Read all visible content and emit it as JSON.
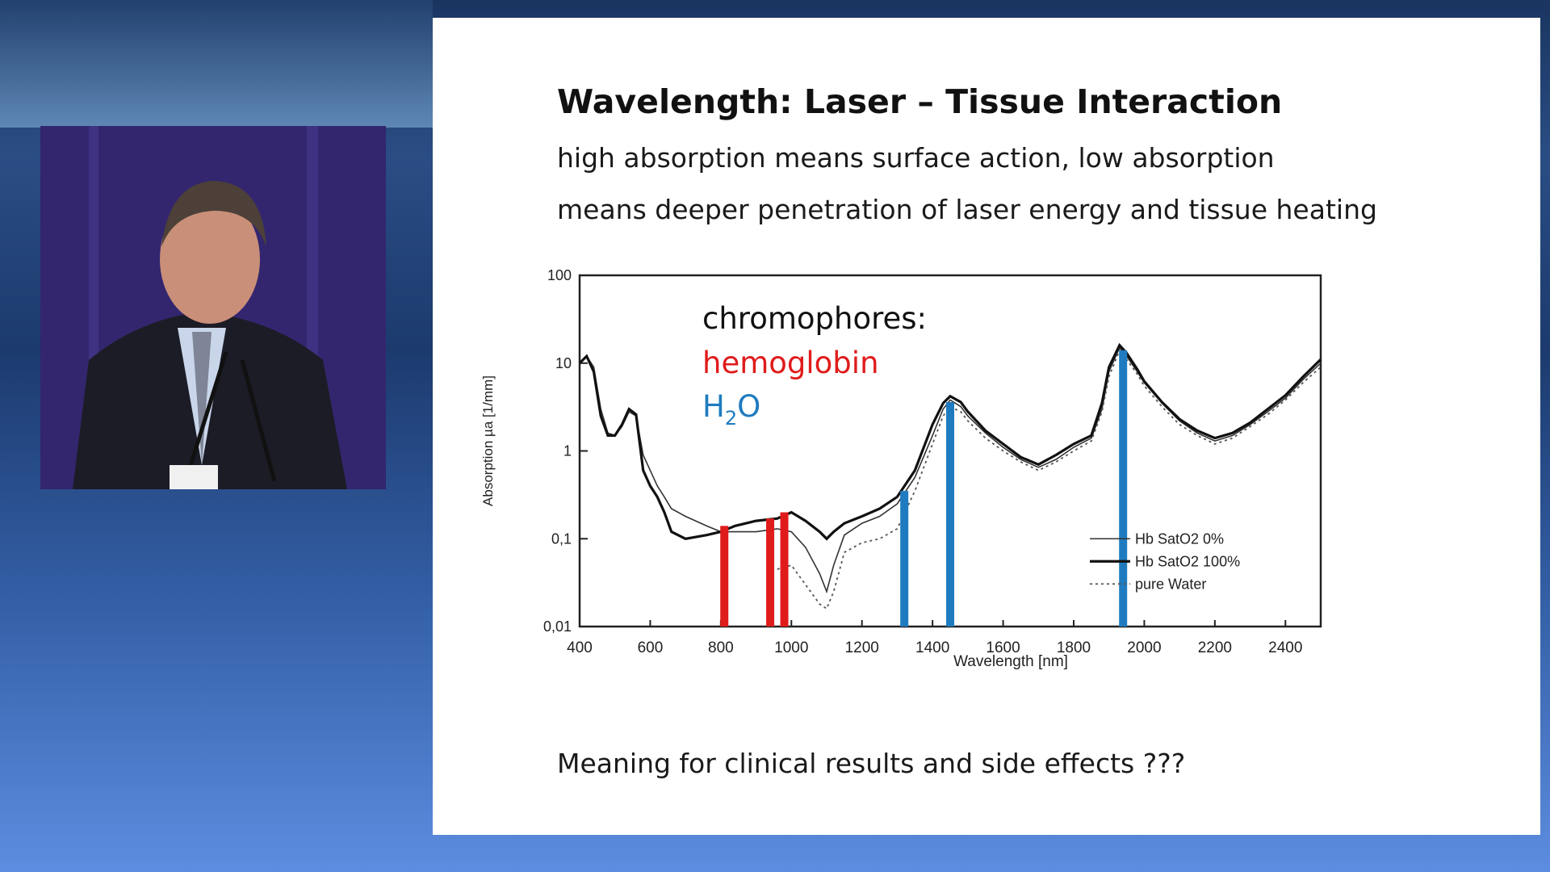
{
  "slide": {
    "title": "Wavelength: Laser – Tissue Interaction",
    "subtitle_line1": "high absorption means surface action, low absorption",
    "subtitle_line2": "means deeper penetration of laser energy and tissue heating",
    "note": "Meaning for clinical results and side effects ???"
  },
  "presenter": {
    "description_icon": "person-speaking-at-podium"
  },
  "chart_data": {
    "type": "line",
    "xlabel": "Wavelength [nm]",
    "ylabel": "Absorption µa [1/mm]",
    "xlim": [
      400,
      2500
    ],
    "ylim": [
      0.01,
      100
    ],
    "y_scale": "log",
    "x_ticks": [
      "400",
      "600",
      "800",
      "1000",
      "1200",
      "1400",
      "1600",
      "1800",
      "2000",
      "2200",
      "2400"
    ],
    "y_ticks": [
      "0,01",
      "0,1",
      "1",
      "10",
      "100"
    ],
    "annotation": {
      "heading": "chromophores:",
      "hemoglobin": "hemoglobin",
      "water_main": "H",
      "water_sub": "2",
      "water_tail": "O",
      "hemoglobin_color": "#e01b1b",
      "water_color": "#1f7bbf"
    },
    "legend_position": "bottom-right",
    "series": [
      {
        "name": "Hb SatO2 0%",
        "style": "thin",
        "x": [
          400,
          420,
          440,
          460,
          480,
          500,
          520,
          540,
          560,
          580,
          600,
          620,
          640,
          660,
          700,
          760,
          800,
          840,
          900,
          960,
          1000,
          1040,
          1080,
          1100,
          1120,
          1150,
          1200,
          1250,
          1300,
          1350,
          1400,
          1430,
          1450,
          1480,
          1500,
          1550,
          1600,
          1650,
          1700,
          1750,
          1800,
          1850,
          1880,
          1900,
          1930,
          1950,
          1980,
          2000,
          2050,
          2100,
          2150,
          2200,
          2250,
          2300,
          2350,
          2400,
          2450,
          2500
        ],
        "y": [
          10,
          12,
          9,
          3,
          1.6,
          1.5,
          1.9,
          2.8,
          2.5,
          0.9,
          0.6,
          0.4,
          0.3,
          0.22,
          0.18,
          0.14,
          0.12,
          0.12,
          0.12,
          0.13,
          0.12,
          0.08,
          0.04,
          0.025,
          0.05,
          0.11,
          0.15,
          0.18,
          0.25,
          0.5,
          1.5,
          3,
          3.8,
          3.2,
          2.5,
          1.6,
          1.1,
          0.8,
          0.65,
          0.8,
          1.1,
          1.4,
          3,
          8,
          15,
          12,
          8,
          6,
          3.5,
          2.2,
          1.6,
          1.3,
          1.5,
          2,
          2.8,
          4,
          6.5,
          10
        ]
      },
      {
        "name": "Hb SatO2 100%",
        "style": "thick",
        "x": [
          400,
          420,
          440,
          460,
          480,
          500,
          520,
          540,
          560,
          580,
          600,
          620,
          640,
          660,
          700,
          760,
          800,
          840,
          900,
          960,
          1000,
          1040,
          1080,
          1100,
          1120,
          1150,
          1200,
          1250,
          1300,
          1350,
          1400,
          1430,
          1450,
          1480,
          1500,
          1550,
          1600,
          1650,
          1700,
          1750,
          1800,
          1850,
          1880,
          1900,
          1930,
          1950,
          1980,
          2000,
          2050,
          2100,
          2150,
          2200,
          2250,
          2300,
          2350,
          2400,
          2450,
          2500
        ],
        "y": [
          10,
          12,
          8,
          2.5,
          1.5,
          1.5,
          2,
          3,
          2.6,
          0.6,
          0.4,
          0.3,
          0.2,
          0.12,
          0.1,
          0.11,
          0.12,
          0.14,
          0.16,
          0.17,
          0.2,
          0.16,
          0.12,
          0.1,
          0.12,
          0.15,
          0.18,
          0.22,
          0.3,
          0.6,
          2,
          3.5,
          4.2,
          3.6,
          2.8,
          1.7,
          1.2,
          0.85,
          0.7,
          0.9,
          1.2,
          1.5,
          3.5,
          9,
          16,
          13,
          8.5,
          6.2,
          3.6,
          2.3,
          1.7,
          1.4,
          1.6,
          2.1,
          3,
          4.3,
          7,
          11
        ]
      },
      {
        "name": "pure Water",
        "style": "dotted",
        "x": [
          960,
          1000,
          1040,
          1080,
          1100,
          1120,
          1150,
          1200,
          1250,
          1300,
          1350,
          1400,
          1430,
          1450,
          1480,
          1500,
          1550,
          1600,
          1650,
          1700,
          1750,
          1800,
          1850,
          1880,
          1900,
          1930,
          1950,
          1980,
          2000,
          2050,
          2100,
          2150,
          2200,
          2250,
          2300,
          2350,
          2400,
          2450,
          2500
        ],
        "y": [
          0.045,
          0.05,
          0.03,
          0.018,
          0.016,
          0.025,
          0.07,
          0.09,
          0.1,
          0.13,
          0.35,
          1.2,
          2.5,
          3.2,
          2.8,
          2.2,
          1.4,
          1,
          0.75,
          0.6,
          0.75,
          1,
          1.3,
          2.8,
          7,
          14,
          11,
          7.5,
          5.5,
          3.2,
          2,
          1.5,
          1.2,
          1.4,
          1.9,
          2.6,
          3.8,
          6,
          9
        ]
      }
    ],
    "markers": {
      "hemoglobin_nm": [
        810,
        940,
        980
      ],
      "water": [
        {
          "nm": 1320,
          "top": 0.35
        },
        {
          "nm": 1450,
          "top": 3.6
        },
        {
          "nm": 1940,
          "top": 14
        }
      ]
    }
  }
}
